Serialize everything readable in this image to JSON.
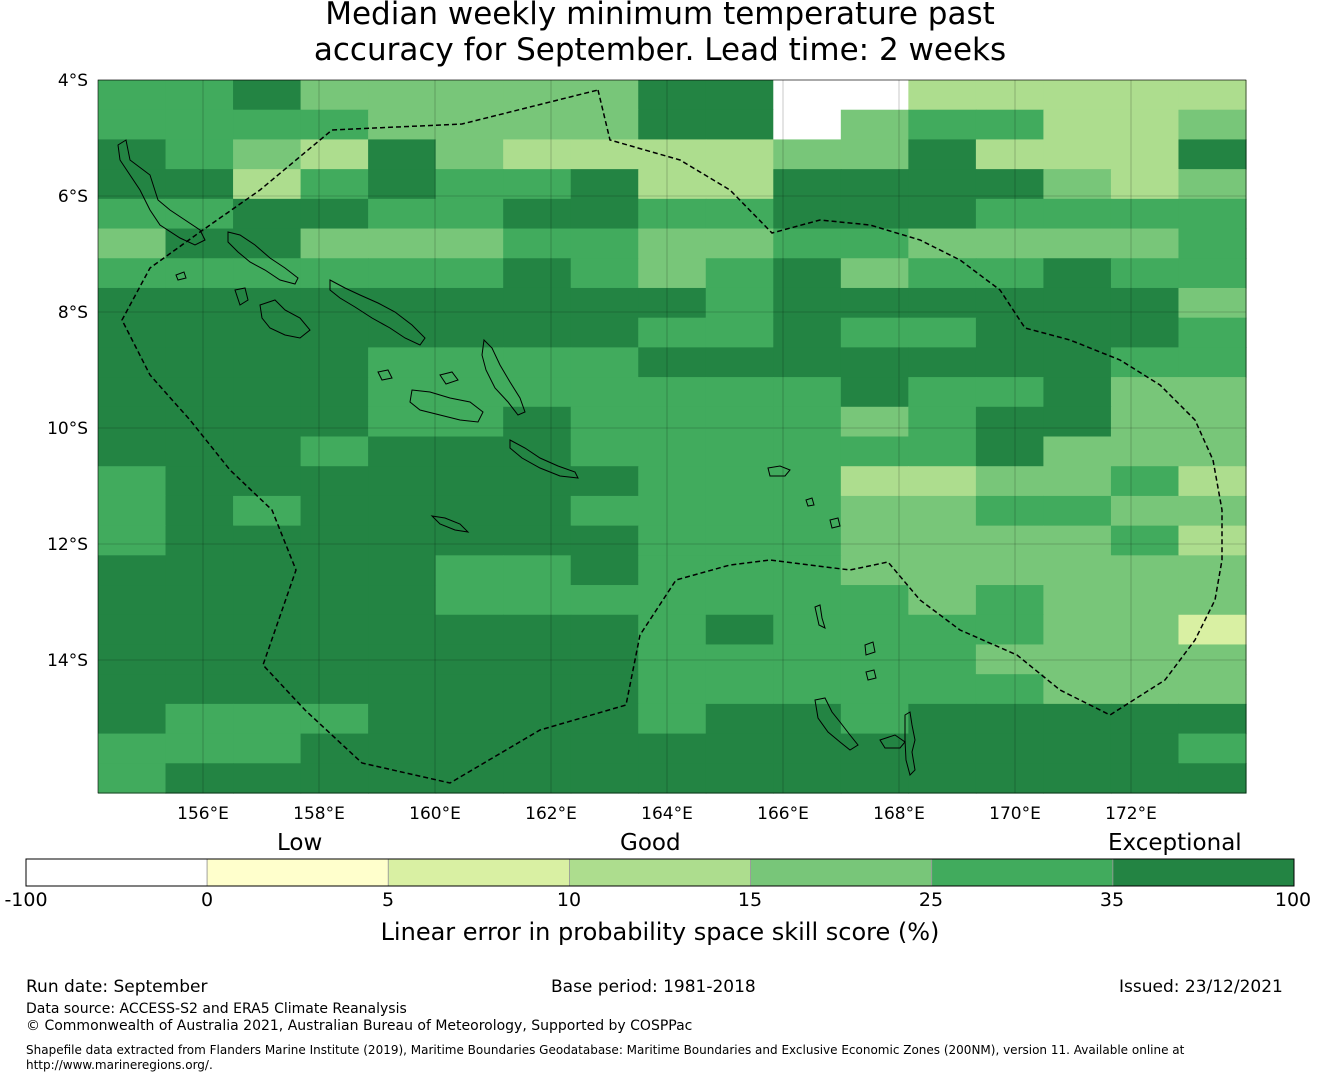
{
  "title": {
    "line1": "Median weekly minimum temperature past",
    "line2": "accuracy for September. Lead time: 2 weeks"
  },
  "map": {
    "lon_range": [
      154.2,
      174.0
    ],
    "lat_range": [
      -16.3,
      -4.0
    ],
    "grid_cell_deg": 0.83,
    "lat_ticks": [
      "4°S",
      "6°S",
      "8°S",
      "10°S",
      "12°S",
      "14°S"
    ],
    "lon_ticks": [
      "156°E",
      "158°E",
      "160°E",
      "162°E",
      "164°E",
      "166°E",
      "168°E",
      "170°E",
      "172°E"
    ],
    "grid_rows": [
      "55644444667733333",
      "55554444668455334",
      "65436433334463336",
      "66356556336666434",
      "55665566556665555",
      "46644455445544445",
      "55555565456455655",
      "66666666656666664",
      "66666666556556665",
      "66665555666666655",
      "66665555555655644",
      "66665565555456644",
      "66656665555556444",
      "56666666555334453",
      "56566665555445544",
      "56666666555444453",
      "66666556555444444",
      "66666555555545444",
      "66666666565555442",
      "66666666555554444",
      "66666666555555444",
      "65556666566566666",
      "55566666666666665",
      "56666666666666666"
    ]
  },
  "colorbar": {
    "categories": [
      "Low",
      "Good",
      "Exceptional"
    ],
    "ticks": [
      "-100",
      "0",
      "5",
      "10",
      "15",
      "25",
      "35",
      "100"
    ],
    "colors": [
      "#ffffff",
      "#ffffcc",
      "#d9f0a3",
      "#addd8e",
      "#78c679",
      "#41ab5d",
      "#238443"
    ],
    "title": "Linear error in probability space skill score (%)"
  },
  "footer": {
    "run_date": "Run date: September",
    "base_period": "Base period: 1981-2018",
    "issued": "Issued: 23/12/2021",
    "data_source": "Data source: ACCESS-S2 and ERA5 Climate Reanalysis",
    "copyright": "© Commonwealth of Australia 2021, Australian Bureau of Meteorology, Supported by COSPPac",
    "shapefile_line1": "Shapefile data extracted from Flanders Marine Institute (2019), Maritime Boundaries Geodatabase: Maritime Boundaries and Exclusive Economic Zones (200NM), version 11. Available online at",
    "shapefile_line2": "http://www.marineregions.org/."
  }
}
